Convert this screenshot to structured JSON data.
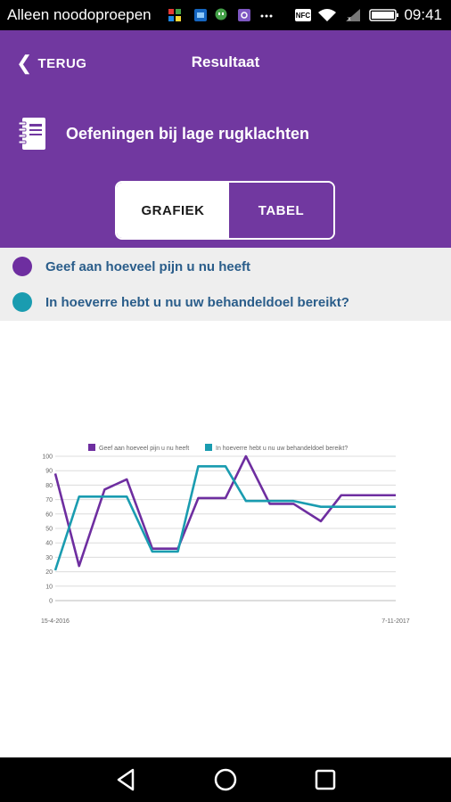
{
  "status": {
    "carrier": "Alleen noodoproepen",
    "time": "09:41"
  },
  "header": {
    "back_label": "TERUG",
    "title": "Resultaat",
    "topic": "Oefeningen bij lage rugklachten"
  },
  "tabs": [
    {
      "label": "GRAFIEK",
      "selected": true
    },
    {
      "label": "TABEL",
      "selected": false
    }
  ],
  "legend": [
    {
      "label": "Geef aan hoeveel pijn u nu heeft",
      "color": "#6e2ea0"
    },
    {
      "label": "In hoeverre hebt u nu uw behandeldoel bereikt?",
      "color": "#1a9cb0"
    }
  ],
  "colors": {
    "brand": "#7138a0",
    "series_1": "#6e2ea0",
    "series_2": "#1a9cb0"
  },
  "chart_data": {
    "type": "line",
    "x_labels": [
      "15-4-2016",
      "7-11-2017"
    ],
    "ylim": [
      0,
      100
    ],
    "yticks": [
      0,
      10,
      20,
      30,
      40,
      50,
      60,
      70,
      80,
      90,
      100
    ],
    "grid": true,
    "legend_position": "top",
    "series": [
      {
        "name": "Geef aan hoeveel pijn u nu heeft",
        "color": "#6e2ea0",
        "values": [
          88,
          24,
          77,
          84,
          36,
          36,
          71,
          71,
          100,
          67,
          67,
          55,
          73,
          73,
          73
        ]
      },
      {
        "name": "In hoeverre hebt u nu uw behandeldoel bereikt?",
        "color": "#1a9cb0",
        "values": [
          21,
          72,
          72,
          72,
          34,
          34,
          93,
          93,
          69,
          69,
          69,
          65,
          65,
          65,
          65
        ]
      }
    ],
    "x_positions": [
      0,
      0.07,
      0.145,
      0.21,
      0.285,
      0.36,
      0.42,
      0.5,
      0.56,
      0.63,
      0.7,
      0.78,
      0.84,
      0.92,
      1
    ]
  }
}
